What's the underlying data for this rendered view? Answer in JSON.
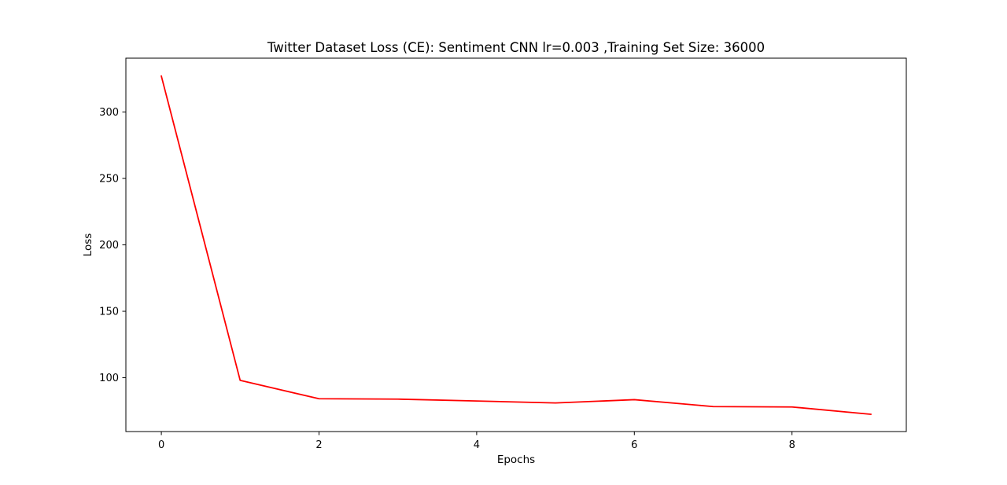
{
  "chart_data": {
    "type": "line",
    "title": "Twitter Dataset Loss (CE): Sentiment CNN lr=0.003 ,Training Set Size: 36000",
    "xlabel": "Epochs",
    "ylabel": "Loss",
    "x": [
      0,
      1,
      2,
      3,
      4,
      5,
      6,
      7,
      8,
      9
    ],
    "series": [
      {
        "name": "",
        "color": "#ff0000",
        "values": [
          327.0,
          98.0,
          84.2,
          83.9,
          82.5,
          81.0,
          83.5,
          78.3,
          78.0,
          72.5
        ]
      }
    ],
    "xlim": [
      -0.45,
      9.45
    ],
    "ylim": [
      59.5,
      340.5
    ],
    "xticks": [
      0,
      2,
      4,
      6,
      8
    ],
    "xtick_labels": [
      "0",
      "2",
      "4",
      "6",
      "8"
    ],
    "yticks": [
      100,
      150,
      200,
      250,
      300
    ],
    "ytick_labels": [
      "100",
      "150",
      "200",
      "250",
      "300"
    ],
    "grid": false,
    "legend": "none"
  }
}
